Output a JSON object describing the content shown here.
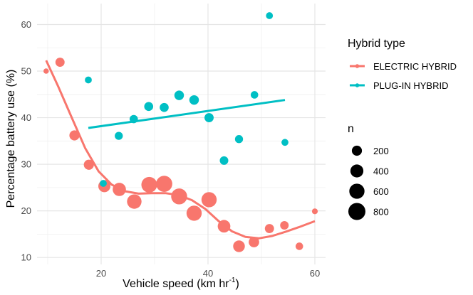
{
  "chart_data": {
    "type": "scatter",
    "xlabel": "Vehicle speed (km hr",
    "xlabel_superscript": "-1",
    "xlabel_suffix": ")",
    "ylabel": "Percentage battery use (%)",
    "xlim": [
      8,
      62
    ],
    "ylim": [
      8.5,
      64.5
    ],
    "x_ticks": [
      20,
      40,
      60
    ],
    "y_ticks": [
      10,
      20,
      30,
      40,
      50,
      60
    ],
    "grid": true,
    "legend_color": {
      "title": "Hybrid type",
      "placement": "right",
      "entries": [
        "ELECTRIC HYBRID",
        "PLUG-IN HYBRID"
      ]
    },
    "legend_size": {
      "title": "n",
      "placement": "right",
      "values": [
        200,
        400,
        600,
        800
      ]
    },
    "colors": {
      "ELECTRIC HYBRID": "#F8766D",
      "PLUG-IN HYBRID": "#00BFC4"
    },
    "series": [
      {
        "name": "ELECTRIC HYBRID",
        "points": [
          {
            "x": 9.7,
            "y": 50.0,
            "n": 20
          },
          {
            "x": 12.3,
            "y": 51.9,
            "n": 150
          },
          {
            "x": 15.0,
            "y": 36.2,
            "n": 200
          },
          {
            "x": 17.7,
            "y": 29.9,
            "n": 200
          },
          {
            "x": 20.6,
            "y": 25.3,
            "n": 330
          },
          {
            "x": 23.4,
            "y": 24.6,
            "n": 420
          },
          {
            "x": 26.2,
            "y": 22.0,
            "n": 530
          },
          {
            "x": 29.0,
            "y": 25.6,
            "n": 650
          },
          {
            "x": 31.8,
            "y": 25.8,
            "n": 700
          },
          {
            "x": 34.6,
            "y": 23.1,
            "n": 680
          },
          {
            "x": 37.4,
            "y": 19.5,
            "n": 600
          },
          {
            "x": 40.2,
            "y": 22.4,
            "n": 600
          },
          {
            "x": 43.0,
            "y": 16.7,
            "n": 370
          },
          {
            "x": 45.8,
            "y": 12.4,
            "n": 300
          },
          {
            "x": 48.6,
            "y": 13.3,
            "n": 220
          },
          {
            "x": 51.5,
            "y": 16.2,
            "n": 150
          },
          {
            "x": 54.3,
            "y": 16.9,
            "n": 120
          },
          {
            "x": 57.1,
            "y": 12.4,
            "n": 80
          },
          {
            "x": 60.0,
            "y": 19.9,
            "n": 30
          }
        ],
        "smooth": [
          [
            9.7,
            52.3
          ],
          [
            12.0,
            46.6
          ],
          [
            14.5,
            40.0
          ],
          [
            17.0,
            33.5
          ],
          [
            19.5,
            28.5
          ],
          [
            22.0,
            25.6
          ],
          [
            24.5,
            24.2
          ],
          [
            27.0,
            23.7
          ],
          [
            29.5,
            23.8
          ],
          [
            32.0,
            23.8
          ],
          [
            34.5,
            23.4
          ],
          [
            37.0,
            22.3
          ],
          [
            39.5,
            20.4
          ],
          [
            42.0,
            17.8
          ],
          [
            44.5,
            15.6
          ],
          [
            47.0,
            14.4
          ],
          [
            49.5,
            14.1
          ],
          [
            52.0,
            14.6
          ],
          [
            54.5,
            15.5
          ],
          [
            57.0,
            16.5
          ],
          [
            60.0,
            17.8
          ]
        ]
      },
      {
        "name": "PLUG-IN HYBRID",
        "points": [
          {
            "x": 17.6,
            "y": 48.1,
            "n": 60
          },
          {
            "x": 20.4,
            "y": 25.9,
            "n": 60
          },
          {
            "x": 23.3,
            "y": 36.1,
            "n": 100
          },
          {
            "x": 26.1,
            "y": 39.7,
            "n": 110
          },
          {
            "x": 28.9,
            "y": 42.4,
            "n": 140
          },
          {
            "x": 31.8,
            "y": 42.2,
            "n": 140
          },
          {
            "x": 34.6,
            "y": 44.8,
            "n": 170
          },
          {
            "x": 37.4,
            "y": 43.8,
            "n": 170
          },
          {
            "x": 40.2,
            "y": 40.0,
            "n": 150
          },
          {
            "x": 43.0,
            "y": 30.8,
            "n": 120
          },
          {
            "x": 45.8,
            "y": 35.4,
            "n": 100
          },
          {
            "x": 48.7,
            "y": 44.9,
            "n": 80
          },
          {
            "x": 51.5,
            "y": 61.9,
            "n": 60
          },
          {
            "x": 54.4,
            "y": 34.7,
            "n": 60
          }
        ],
        "fit": [
          [
            17.6,
            37.8
          ],
          [
            54.4,
            43.8
          ]
        ]
      }
    ]
  }
}
